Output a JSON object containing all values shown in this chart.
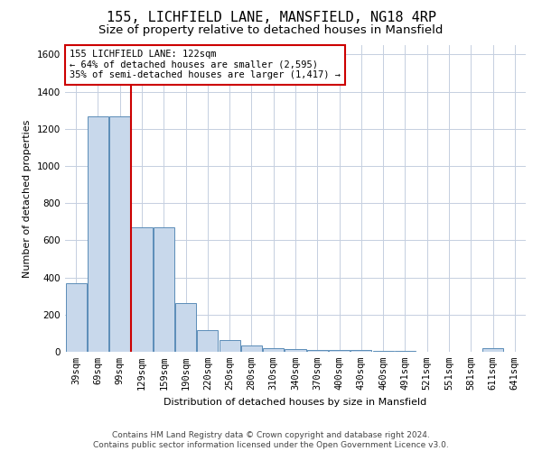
{
  "title": "155, LICHFIELD LANE, MANSFIELD, NG18 4RP",
  "subtitle": "Size of property relative to detached houses in Mansfield",
  "xlabel": "Distribution of detached houses by size in Mansfield",
  "ylabel": "Number of detached properties",
  "footer_line1": "Contains HM Land Registry data © Crown copyright and database right 2024.",
  "footer_line2": "Contains public sector information licensed under the Open Government Licence v3.0.",
  "categories": [
    "39sqm",
    "69sqm",
    "99sqm",
    "129sqm",
    "159sqm",
    "190sqm",
    "220sqm",
    "250sqm",
    "280sqm",
    "310sqm",
    "340sqm",
    "370sqm",
    "400sqm",
    "430sqm",
    "460sqm",
    "491sqm",
    "521sqm",
    "551sqm",
    "581sqm",
    "611sqm",
    "641sqm"
  ],
  "values": [
    370,
    1265,
    1265,
    670,
    670,
    260,
    115,
    65,
    35,
    20,
    15,
    10,
    8,
    8,
    5,
    3,
    0,
    0,
    0,
    20,
    0
  ],
  "bar_color": "#c8d8eb",
  "bar_edge_color": "#5b8db8",
  "vline_color": "#cc0000",
  "vline_pos": 2.5,
  "annotation_text": "155 LICHFIELD LANE: 122sqm\n← 64% of detached houses are smaller (2,595)\n35% of semi-detached houses are larger (1,417) →",
  "annotation_box_color": "white",
  "annotation_box_edge": "#cc0000",
  "ylim": [
    0,
    1650
  ],
  "yticks": [
    0,
    200,
    400,
    600,
    800,
    1000,
    1200,
    1400,
    1600
  ],
  "background_color": "white",
  "grid_color": "#c5cfe0",
  "title_fontsize": 11,
  "subtitle_fontsize": 9.5,
  "axis_label_fontsize": 8,
  "tick_fontsize": 7.5,
  "footer_fontsize": 6.5,
  "annotation_fontsize": 7.5
}
